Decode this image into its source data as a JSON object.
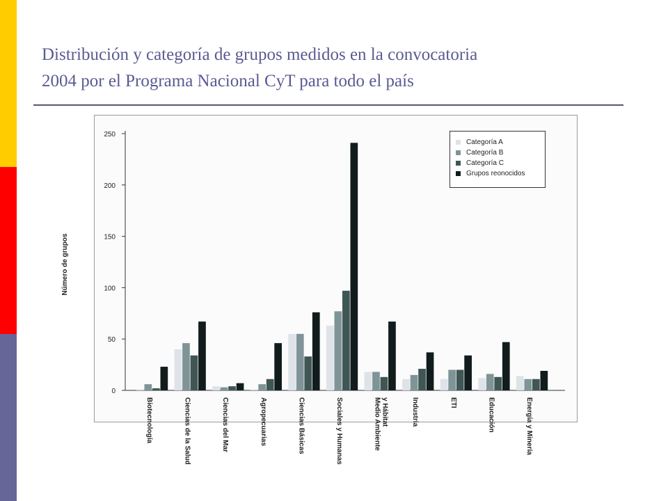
{
  "slide": {
    "title_line1": "Distribución y categoría  de grupos medidos  en la convocatoria",
    "title_line2": "2004 por el Programa Nacional CyT para todo el país",
    "accent_colors": [
      "#ffcc00",
      "#ff0000",
      "#666699"
    ]
  },
  "chart_data": {
    "type": "bar",
    "ylabel": "Número de grupos",
    "ylim": [
      0,
      250
    ],
    "yticks": [
      0,
      50,
      100,
      150,
      200,
      250
    ],
    "grid": false,
    "legend_position": "top-right",
    "categories": [
      "Biotecnología",
      "Ciencias de la Salud",
      "Ciencias del Mar",
      "Agropecuarias",
      "Ciencias Básicas",
      "Sociales y Humanas",
      "Medio Ambiente y Hábitat",
      "Industria",
      "ETI",
      "Educación",
      "Energía y Minería"
    ],
    "category_lines": [
      [
        "Biotecnología"
      ],
      [
        "Ciencias de la Salud"
      ],
      [
        "Ciencias del Mar"
      ],
      [
        "Agropecuarias"
      ],
      [
        "Ciencias Básicas"
      ],
      [
        "Sociales y Humanas"
      ],
      [
        "Medio Ambiente",
        "y Hábitat"
      ],
      [
        "Industria"
      ],
      [
        "ETI"
      ],
      [
        "Educación"
      ],
      [
        "Energía y Minería"
      ]
    ],
    "series": [
      {
        "name": "Categoría A",
        "color": "#dde3e8",
        "values": [
          1,
          40,
          4,
          1,
          55,
          63,
          18,
          11,
          11,
          12,
          14
        ]
      },
      {
        "name": "Categoría B",
        "color": "#7f9497",
        "values": [
          6,
          46,
          3,
          6,
          55,
          77,
          18,
          15,
          20,
          16,
          11
        ]
      },
      {
        "name": "Categoría C",
        "color": "#3f5655",
        "values": [
          2,
          34,
          4,
          11,
          33,
          97,
          13,
          21,
          20,
          13,
          11
        ]
      },
      {
        "name": "Grupos reonocidos",
        "color": "#121c1c",
        "values": [
          23,
          67,
          7,
          46,
          76,
          241,
          67,
          37,
          34,
          47,
          19
        ]
      }
    ]
  }
}
